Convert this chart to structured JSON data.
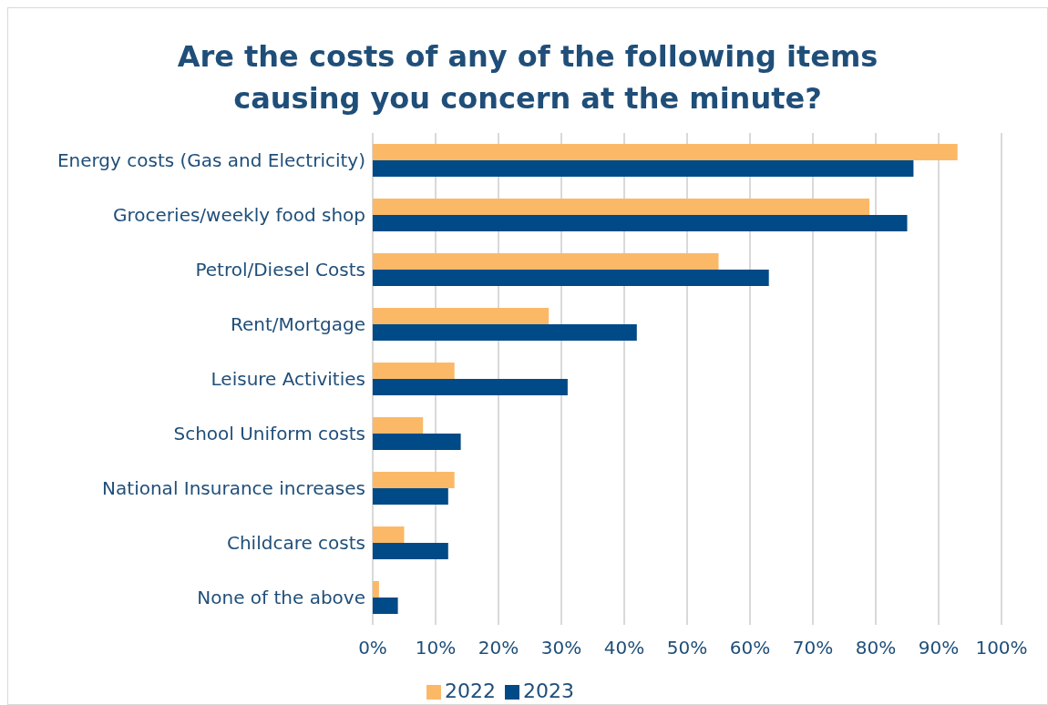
{
  "chart_data": {
    "type": "bar",
    "orientation": "horizontal",
    "title": "Are the costs of any of the following items causing you concern at the minute?",
    "categories": [
      "Energy costs (Gas and Electricity)",
      "Groceries/weekly food shop",
      "Petrol/Diesel Costs",
      "Rent/Mortgage",
      "Leisure Activities",
      "School Uniform costs",
      "National Insurance increases",
      "Childcare costs",
      "None of the above"
    ],
    "series": [
      {
        "name": "2022",
        "color": "#fbb968",
        "values": [
          93,
          79,
          55,
          28,
          13,
          8,
          13,
          5,
          1
        ]
      },
      {
        "name": "2023",
        "color": "#004a87",
        "values": [
          86,
          85,
          63,
          42,
          31,
          14,
          12,
          12,
          4
        ]
      }
    ],
    "xlim": [
      0,
      100
    ],
    "xticks": [
      {
        "value": 0,
        "label": "0%"
      },
      {
        "value": 10,
        "label": "10%"
      },
      {
        "value": 20,
        "label": "20%"
      },
      {
        "value": 30,
        "label": "30%"
      },
      {
        "value": 40,
        "label": "40%"
      },
      {
        "value": 50,
        "label": "50%"
      },
      {
        "value": 60,
        "label": "60%"
      },
      {
        "value": 70,
        "label": "70%"
      },
      {
        "value": 80,
        "label": "80%"
      },
      {
        "value": 90,
        "label": "90%"
      },
      {
        "value": 100,
        "label": "100%"
      }
    ],
    "grid": "x",
    "legend": "bottom"
  }
}
